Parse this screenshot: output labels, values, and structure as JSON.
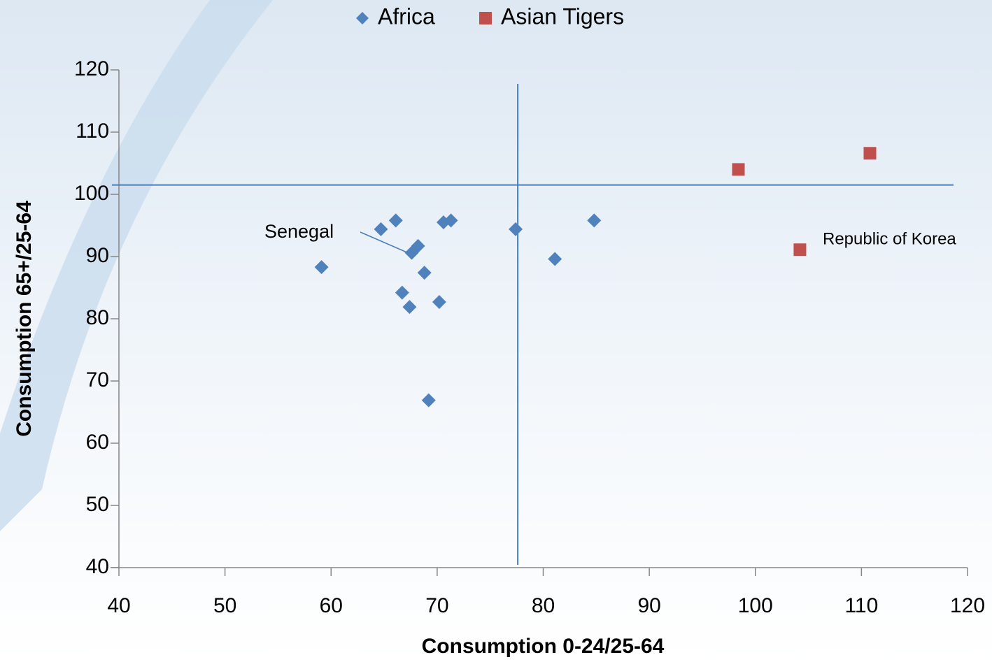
{
  "chart_data": {
    "type": "scatter",
    "legend": "top",
    "xlabel": "Consumption 0-24/25-64",
    "ylabel": "Consumption 65+/25-64",
    "xlim": [
      40,
      120
    ],
    "ylim": [
      40,
      120
    ],
    "xticks": [
      40,
      50,
      60,
      70,
      80,
      90,
      100,
      110,
      120
    ],
    "yticks": [
      40,
      50,
      60,
      70,
      80,
      90,
      100,
      110,
      120
    ],
    "reference_lines": {
      "x": 77.6,
      "y": 101.5,
      "color": "#4a7ebb"
    },
    "series": [
      {
        "name": "Africa",
        "color": "#4f81bd",
        "marker": "diamond",
        "x": [
          64.7,
          66.1,
          59.1,
          66.7,
          67.4,
          67.6,
          68.2,
          68.8,
          70.2,
          69.2,
          70.6,
          71.3,
          77.4,
          81.1,
          84.8
        ],
        "values": [
          94.4,
          95.8,
          88.3,
          84.2,
          81.9,
          90.6,
          91.7,
          87.4,
          82.7,
          66.9,
          95.5,
          95.8,
          94.4,
          89.6,
          95.8
        ]
      },
      {
        "name": "Asian Tigers",
        "color": "#c0504d",
        "marker": "square",
        "x": [
          98.4,
          110.8,
          104.2
        ],
        "values": [
          104.0,
          106.6,
          91.1
        ]
      }
    ],
    "annotations": [
      {
        "text": "Senegal"
      },
      {
        "text": "Republic of Korea"
      }
    ]
  }
}
